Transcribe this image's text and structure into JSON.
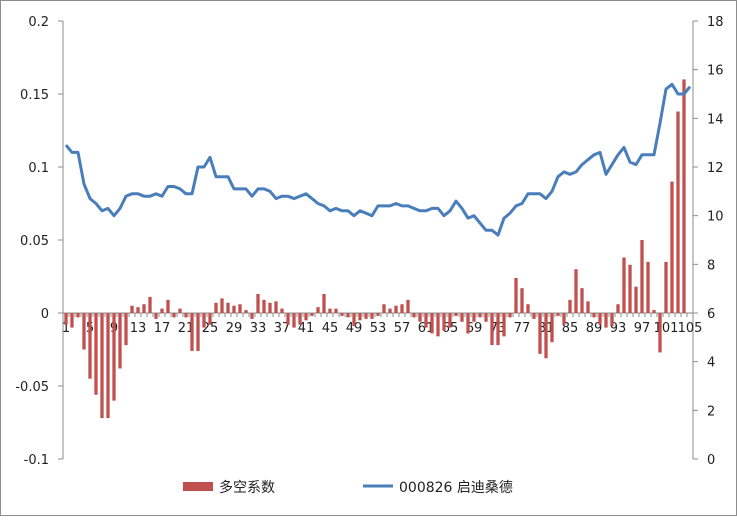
{
  "chart_data": {
    "type": "bar+line",
    "categories": [
      1,
      2,
      3,
      4,
      5,
      6,
      7,
      8,
      9,
      10,
      11,
      12,
      13,
      14,
      15,
      16,
      17,
      18,
      19,
      20,
      21,
      22,
      23,
      24,
      25,
      26,
      27,
      28,
      29,
      30,
      31,
      32,
      33,
      34,
      35,
      36,
      37,
      38,
      39,
      40,
      41,
      42,
      43,
      44,
      45,
      46,
      47,
      48,
      49,
      50,
      51,
      52,
      53,
      54,
      55,
      56,
      57,
      58,
      59,
      60,
      61,
      62,
      63,
      64,
      65,
      66,
      67,
      68,
      69,
      70,
      71,
      72,
      73,
      74,
      75,
      76,
      77,
      78,
      79,
      80,
      81,
      82,
      83,
      84,
      85,
      86,
      87,
      88,
      89,
      90,
      91,
      92,
      93,
      94,
      95,
      96,
      97,
      98,
      99,
      100,
      101,
      102,
      103,
      104,
      105
    ],
    "x_tick_labels": [
      "1",
      "5",
      "9",
      "13",
      "17",
      "21",
      "25",
      "29",
      "33",
      "37",
      "41",
      "45",
      "49",
      "53",
      "57",
      "61",
      "65",
      "69",
      "73",
      "77",
      "81",
      "85",
      "89",
      "93",
      "97",
      "101",
      "105"
    ],
    "series": [
      {
        "name": "多空系数",
        "kind": "bar",
        "axis": "left",
        "color": "#c0504d",
        "values": [
          -0.008,
          -0.01,
          -0.003,
          -0.025,
          -0.045,
          -0.056,
          -0.072,
          -0.072,
          -0.06,
          -0.038,
          -0.022,
          0.005,
          0.004,
          0.006,
          0.011,
          -0.004,
          0.003,
          0.009,
          -0.003,
          0.003,
          -0.003,
          -0.026,
          -0.026,
          -0.01,
          -0.008,
          0.007,
          0.01,
          0.007,
          0.005,
          0.006,
          0.002,
          -0.004,
          0.013,
          0.009,
          0.007,
          0.008,
          0.003,
          -0.008,
          -0.01,
          -0.008,
          -0.005,
          -0.002,
          0.004,
          0.013,
          0.003,
          0.003,
          -0.002,
          -0.003,
          -0.009,
          -0.005,
          -0.004,
          -0.004,
          -0.002,
          0.006,
          0.003,
          0.005,
          0.006,
          0.009,
          -0.003,
          -0.006,
          -0.01,
          -0.014,
          -0.016,
          -0.012,
          -0.01,
          -0.002,
          -0.006,
          -0.014,
          -0.006,
          -0.003,
          -0.006,
          -0.022,
          -0.022,
          -0.016,
          -0.003,
          0.024,
          0.017,
          0.006,
          -0.004,
          -0.028,
          -0.031,
          -0.02,
          -0.002,
          -0.008,
          0.009,
          0.03,
          0.017,
          0.008,
          -0.003,
          -0.008,
          -0.01,
          -0.009,
          0.006,
          0.038,
          0.033,
          0.018,
          0.05,
          0.035,
          0.002,
          -0.027,
          0.035,
          0.09,
          0.138,
          0.16,
          0.0
        ],
        "note_last": ""
      },
      {
        "name": "000826 启迪桑德",
        "kind": "line",
        "axis": "right",
        "color": "#4a7ebb",
        "values": [
          12.9,
          12.6,
          12.6,
          11.3,
          10.7,
          10.5,
          10.2,
          10.3,
          10.0,
          10.3,
          10.8,
          10.9,
          10.9,
          10.8,
          10.8,
          10.9,
          10.8,
          11.2,
          11.2,
          11.1,
          10.9,
          10.9,
          12.0,
          12.0,
          12.4,
          11.6,
          11.6,
          11.6,
          11.1,
          11.1,
          11.1,
          10.8,
          11.1,
          11.1,
          11.0,
          10.7,
          10.8,
          10.8,
          10.7,
          10.8,
          10.9,
          10.7,
          10.5,
          10.4,
          10.2,
          10.3,
          10.2,
          10.2,
          10.0,
          10.2,
          10.1,
          10.0,
          10.4,
          10.4,
          10.4,
          10.5,
          10.4,
          10.4,
          10.3,
          10.2,
          10.2,
          10.3,
          10.3,
          10.0,
          10.2,
          10.6,
          10.3,
          9.9,
          10.0,
          9.7,
          9.4,
          9.4,
          9.2,
          9.9,
          10.1,
          10.4,
          10.5,
          10.9,
          10.9,
          10.9,
          10.7,
          11.0,
          11.6,
          11.8,
          11.7,
          11.8,
          12.1,
          12.3,
          12.5,
          12.6,
          11.7,
          12.1,
          12.5,
          12.8,
          12.2,
          12.1,
          12.5,
          12.5,
          12.5,
          13.8,
          15.2,
          15.4,
          15.0,
          15.0,
          15.3
        ]
      }
    ],
    "left_axis": {
      "min": -0.1,
      "max": 0.2,
      "ticks": [
        "-0.1",
        "-0.05",
        "0",
        "0.05",
        "0.1",
        "0.15",
        "0.2"
      ],
      "values": [
        -0.1,
        -0.05,
        0,
        0.05,
        0.1,
        0.15,
        0.2
      ]
    },
    "right_axis": {
      "min": 0,
      "max": 18,
      "ticks": [
        "0",
        "2",
        "4",
        "6",
        "8",
        "10",
        "12",
        "14",
        "16",
        "18"
      ],
      "values": [
        0,
        2,
        4,
        6,
        8,
        10,
        12,
        14,
        16,
        18
      ]
    },
    "legend": {
      "position": "bottom-center",
      "items": [
        {
          "label": "多空系数",
          "kind": "bar",
          "color": "#c0504d"
        },
        {
          "label": "000826 启迪桑德",
          "kind": "line",
          "color": "#4a7ebb"
        }
      ]
    },
    "grid": false,
    "title": ""
  }
}
